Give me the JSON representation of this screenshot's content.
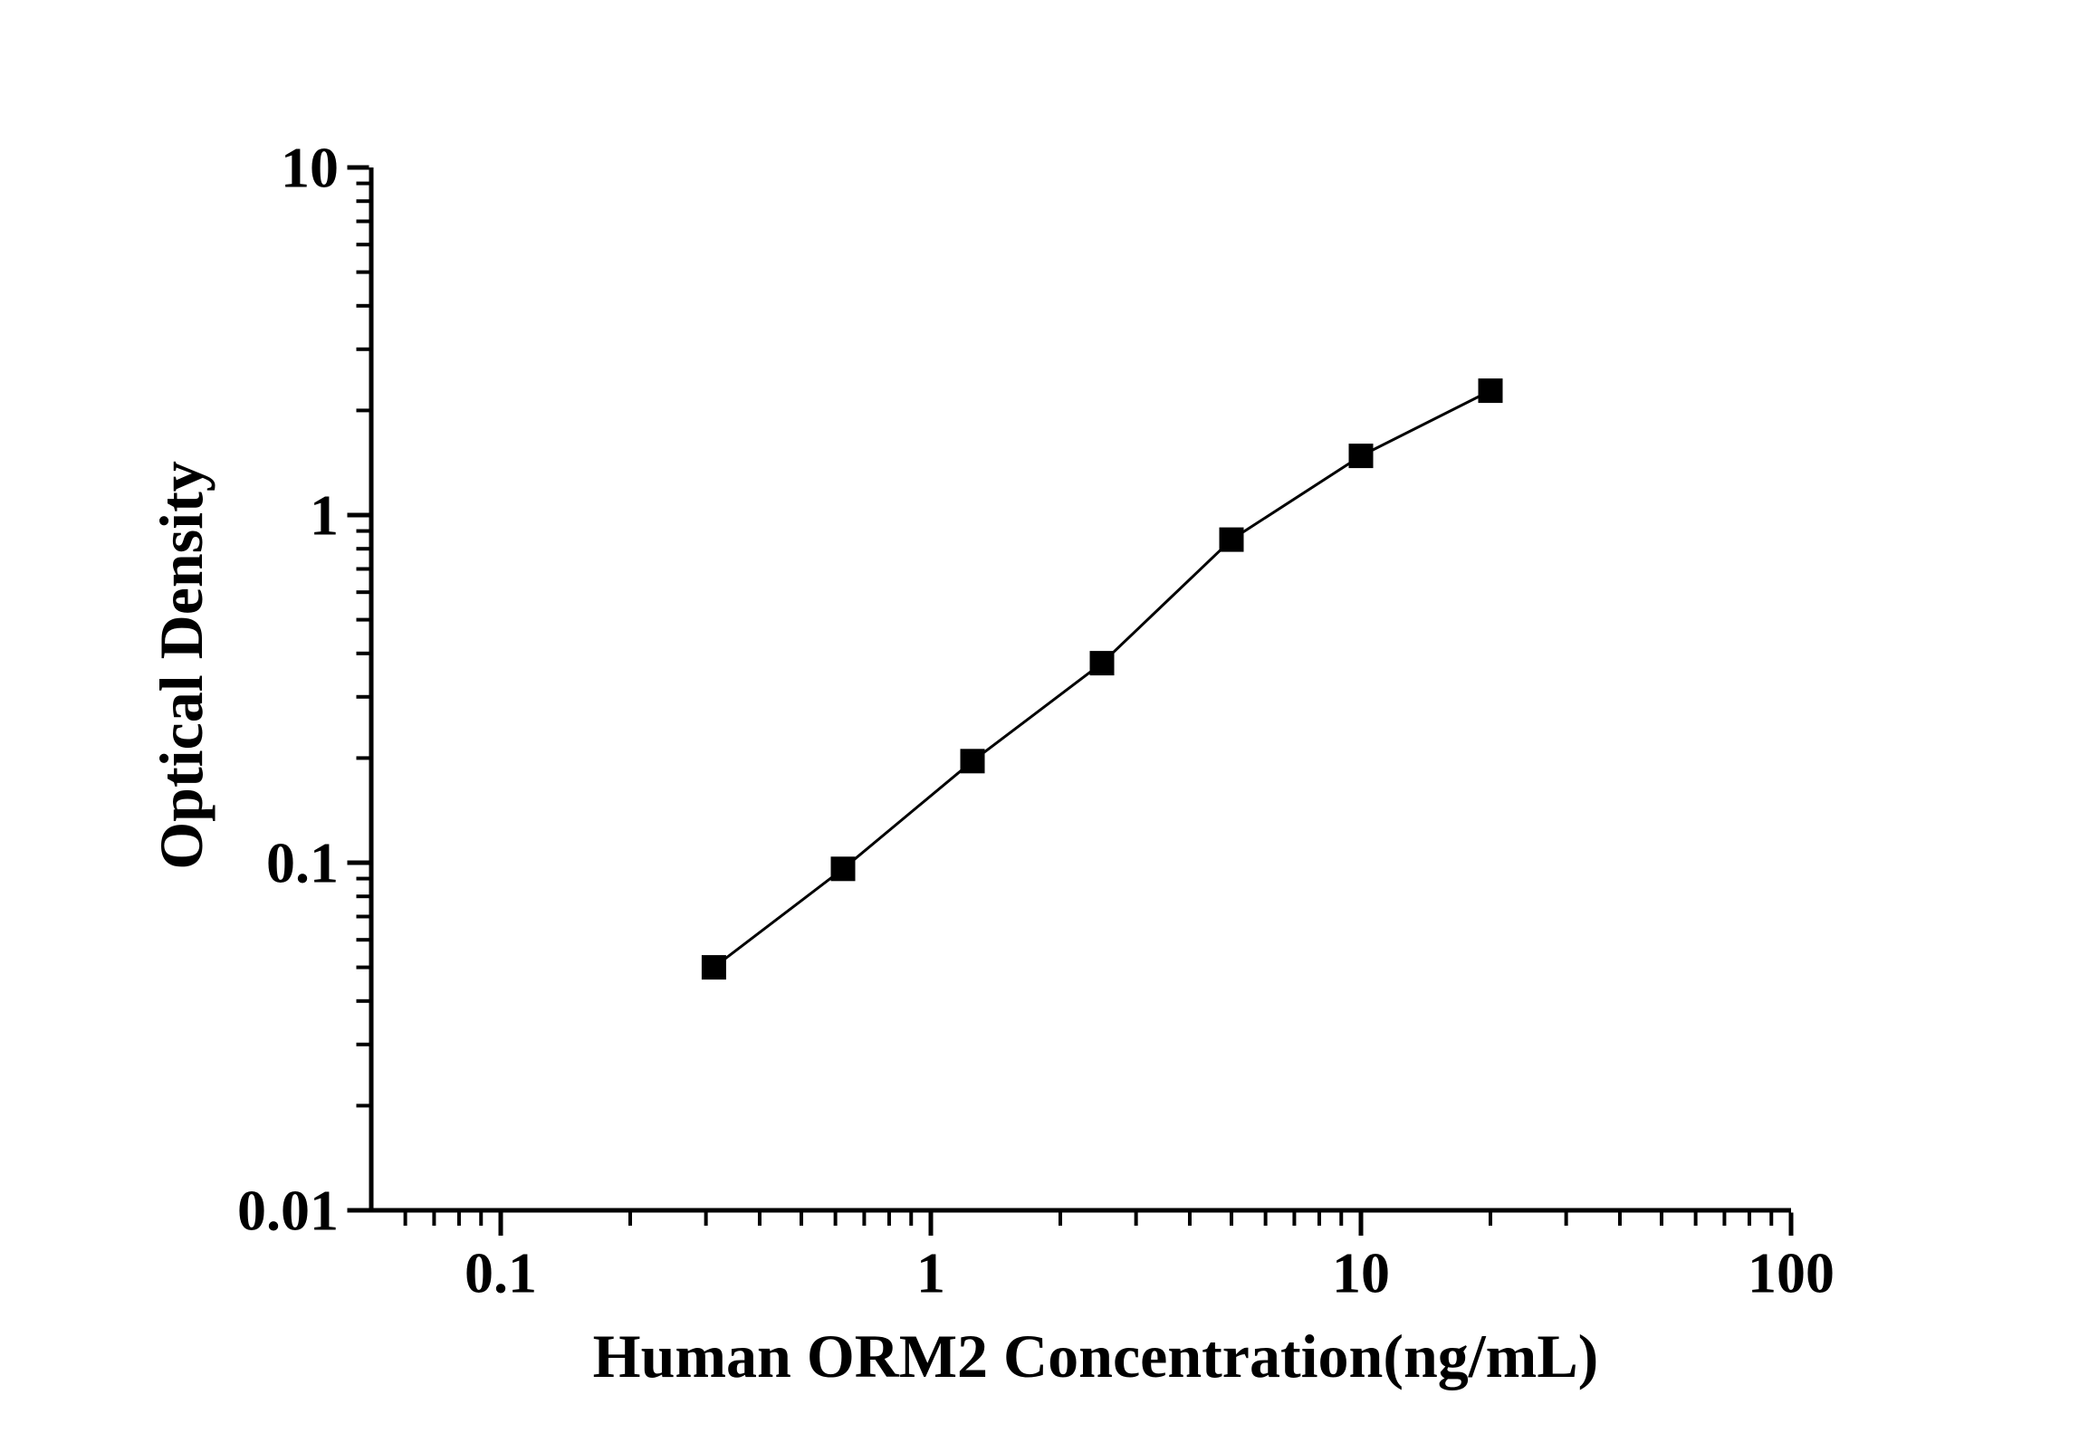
{
  "figure": {
    "background_color": "#ffffff",
    "ink_color": "#000000"
  },
  "chart_data": {
    "type": "line",
    "subtype": "scatter-line-log-log-standard-curve",
    "title": "",
    "xlabel": "Human ORM2 Concentration(ng/mL)",
    "ylabel": "Optical Density",
    "x_scale": "log",
    "y_scale": "log",
    "xlim": [
      0.05,
      100
    ],
    "ylim": [
      0.01,
      10
    ],
    "grid": false,
    "legend_position": "none",
    "x_ticks": [
      {
        "value": 0.1,
        "label": "0.1"
      },
      {
        "value": 1,
        "label": "1"
      },
      {
        "value": 10,
        "label": "10"
      },
      {
        "value": 100,
        "label": "100"
      }
    ],
    "y_ticks": [
      {
        "value": 10,
        "label": "10"
      },
      {
        "value": 1,
        "label": "1"
      },
      {
        "value": 0.1,
        "label": "0.1"
      },
      {
        "value": 0.01,
        "label": "0.01"
      }
    ],
    "series": [
      {
        "name": "standard-curve",
        "marker": "filled-square",
        "color": "#000000",
        "points": [
          {
            "x": 0.313,
            "y": 0.05
          },
          {
            "x": 0.625,
            "y": 0.096
          },
          {
            "x": 1.25,
            "y": 0.196
          },
          {
            "x": 2.5,
            "y": 0.375
          },
          {
            "x": 5,
            "y": 0.85
          },
          {
            "x": 10,
            "y": 1.48
          },
          {
            "x": 20,
            "y": 2.28
          }
        ]
      }
    ]
  }
}
